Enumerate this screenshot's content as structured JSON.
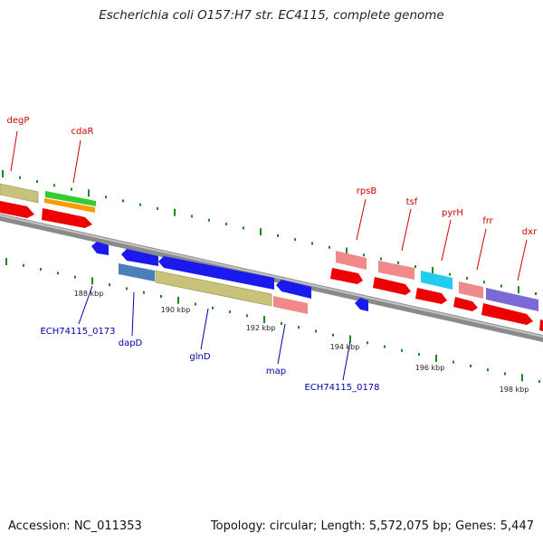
{
  "title": "Escherichia coli O157:H7 str. EC4115, complete genome",
  "footer": {
    "accession": "Accession: NC_011353",
    "topology": "Topology: circular; Length: 5,572,075 bp; Genes: 5,447"
  },
  "colors": {
    "backbone": "#8a8a8a",
    "tick": "#1a8a1a",
    "forward_red": "#ee0000",
    "khaki": "#c8c27a",
    "green": "#33cc33",
    "orange": "#ff9900",
    "blue": "#1a1aee",
    "steel_blue": "#4a7fb8",
    "salmon": "#f08a8a",
    "cyan": "#22ccee",
    "purple": "#7a6ad8"
  },
  "scale_labels": [
    "188 kbp",
    "190 kbp",
    "192 kbp",
    "194 kbp",
    "196 kbp",
    "198 kbp"
  ],
  "gene_labels": {
    "top": [
      "degP",
      "cdaR",
      "rpsB",
      "tsf",
      "pyrH",
      "frr",
      "dxr"
    ],
    "bottom": [
      "ECH74115_0173",
      "dapD",
      "glnD",
      "map",
      "ECH74115_0178"
    ]
  }
}
